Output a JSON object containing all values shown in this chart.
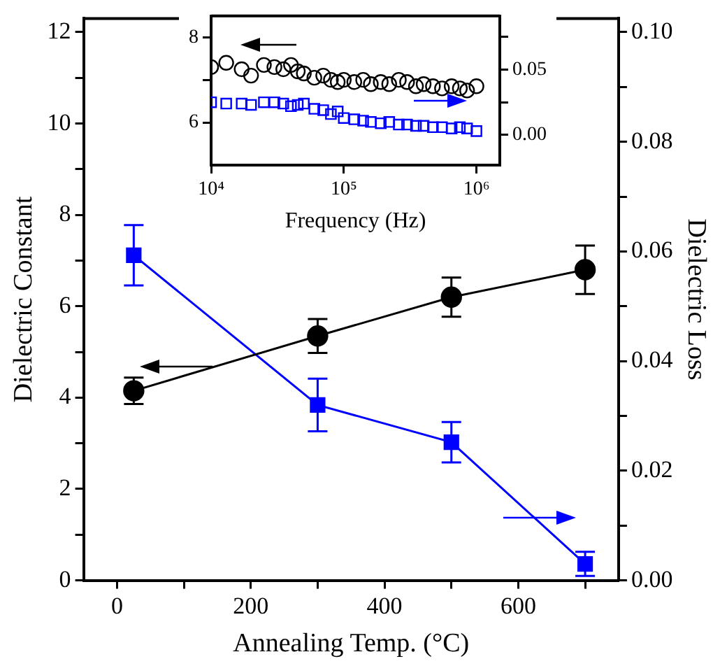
{
  "chart_data": [
    {
      "type": "line",
      "xlabel": "Annealing Temp. (°C)",
      "ylabel": "Dielectric Constant",
      "y2label": "Dielectric Loss",
      "x": [
        25,
        300,
        500,
        700
      ],
      "series": [
        {
          "color": "#000000",
          "marker": "circle",
          "values": [
            4.15,
            5.35,
            6.2,
            6.8
          ],
          "errors": [
            0.29,
            0.37,
            0.43,
            0.53
          ]
        },
        {
          "color": "#0000ff",
          "marker": "square",
          "axis": "y2",
          "values": [
            0.0593,
            0.032,
            0.0252,
            0.003
          ],
          "errors": [
            0.0055,
            0.0048,
            0.0037,
            0.0022
          ]
        }
      ],
      "xlim": [
        -50,
        750
      ],
      "xticks": [
        0,
        {
          "value": 100,
          "label": null
        },
        200,
        {
          "value": 300,
          "label": null
        },
        400,
        {
          "value": 500,
          "label": null
        },
        600,
        {
          "value": 700,
          "label": null
        }
      ],
      "ylim": [
        0,
        12.3
      ],
      "yticks": [
        0,
        {
          "value": 1,
          "label": null
        },
        2,
        {
          "value": 3,
          "label": null
        },
        4,
        {
          "value": 5,
          "label": null
        },
        6,
        {
          "value": 7,
          "label": null
        },
        8,
        {
          "value": 9,
          "label": null
        },
        10,
        {
          "value": 11,
          "label": null
        },
        12
      ],
      "y2lim": [
        0,
        0.1025
      ],
      "y2ticks": [
        {
          "value": 0,
          "label": "0.00"
        },
        {
          "value": 0.01,
          "label": null
        },
        {
          "value": 0.02,
          "label": "0.02"
        },
        {
          "value": 0.03,
          "label": null
        },
        {
          "value": 0.04,
          "label": "0.04"
        },
        {
          "value": 0.05,
          "label": null
        },
        {
          "value": 0.06,
          "label": "0.06"
        },
        {
          "value": 0.07,
          "label": null
        },
        {
          "value": 0.08,
          "label": "0.08"
        },
        {
          "value": 0.09,
          "label": null
        },
        {
          "value": 0.1,
          "label": "0.10"
        }
      ]
    },
    {
      "type": "scatter",
      "xlabel": "Frequency (Hz)",
      "log": "x",
      "x": [
        10000,
        13000,
        17000,
        20000,
        25000,
        30000,
        35000,
        40000,
        45000,
        50000,
        60000,
        70000,
        80000,
        90000,
        100000,
        120000,
        140000,
        160000,
        190000,
        220000,
        260000,
        300000,
        350000,
        400000,
        470000,
        550000,
        650000,
        750000,
        850000,
        1000000
      ],
      "series": [
        {
          "color": "#000000",
          "marker": "circle",
          "values": [
            7.3,
            7.4,
            7.25,
            7.1,
            7.35,
            7.3,
            7.25,
            7.35,
            7.2,
            7.15,
            7.05,
            7.1,
            7.0,
            6.95,
            7.0,
            6.95,
            7.0,
            6.9,
            6.95,
            6.9,
            7.0,
            6.95,
            6.85,
            6.9,
            6.85,
            6.8,
            6.85,
            6.8,
            6.75,
            6.85
          ]
        },
        {
          "color": "#0000ff",
          "marker": "square",
          "axis": "y2",
          "values": [
            0.025,
            0.024,
            0.024,
            0.023,
            0.025,
            0.025,
            0.024,
            0.022,
            0.023,
            0.024,
            0.02,
            0.019,
            0.016,
            0.018,
            0.013,
            0.012,
            0.011,
            0.01,
            0.009,
            0.01,
            0.008,
            0.008,
            0.007,
            0.007,
            0.006,
            0.006,
            0.005,
            0.006,
            0.005,
            0.003
          ]
        }
      ],
      "xlim": [
        10000,
        1500000
      ],
      "xticks": [
        {
          "value": 10000,
          "label": "10⁴"
        },
        {
          "value": 100000,
          "label": "10⁵"
        },
        {
          "value": 1000000,
          "label": "10⁶"
        }
      ],
      "ylim": [
        5,
        8.5
      ],
      "yticks": [
        6,
        {
          "value": 7,
          "label": null
        },
        8
      ],
      "y2lim": [
        -0.023,
        0.091
      ],
      "y2ticks": [
        {
          "value": 0,
          "label": "0.00"
        },
        {
          "value": 0.025,
          "label": null
        },
        {
          "value": 0.05,
          "label": "0.05"
        },
        {
          "value": 0.075,
          "label": null
        }
      ]
    }
  ]
}
